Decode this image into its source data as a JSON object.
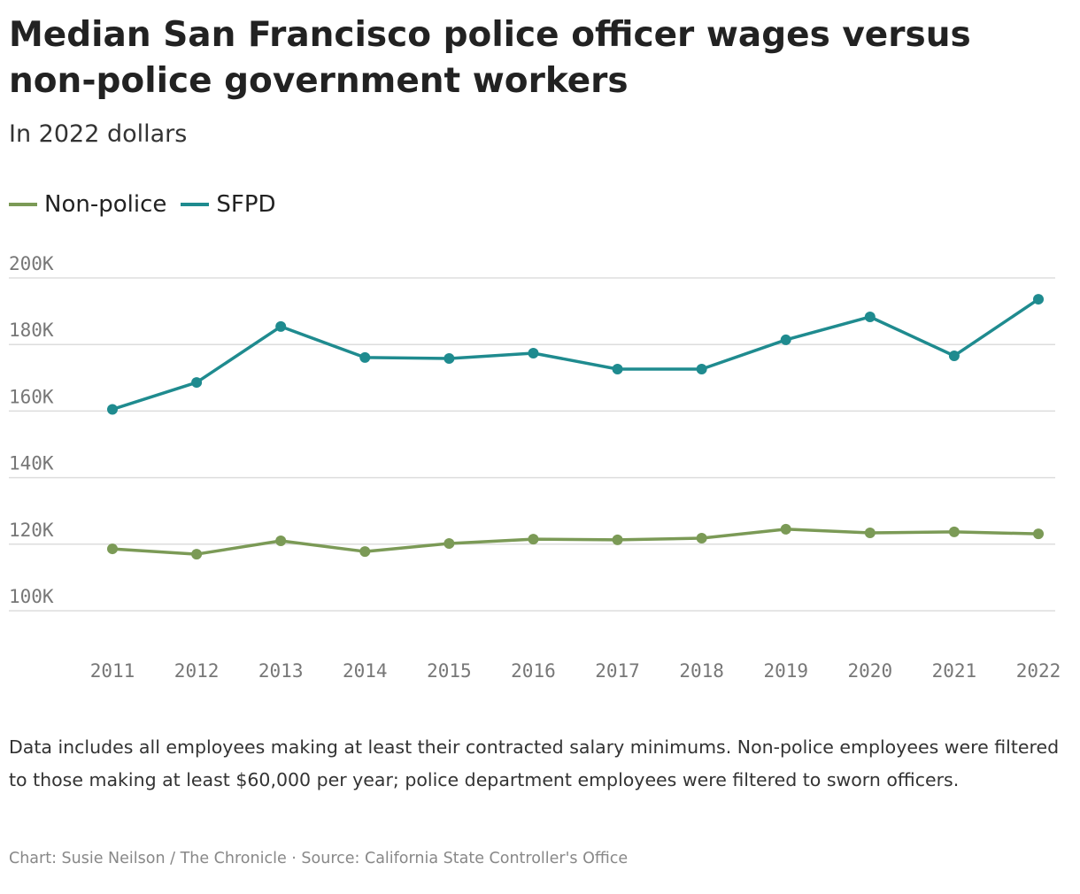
{
  "chart_data": {
    "type": "line",
    "title": "Median San Francisco police officer wages versus non-police government workers",
    "subtitle": "In 2022 dollars",
    "categories": [
      "2011",
      "2012",
      "2013",
      "2014",
      "2015",
      "2016",
      "2017",
      "2018",
      "2019",
      "2020",
      "2021",
      "2022"
    ],
    "series": [
      {
        "name": "Non-police",
        "color": "#7b9a56",
        "values": [
          118600,
          117000,
          121000,
          117800,
          120200,
          121500,
          121300,
          121800,
          124500,
          123400,
          123700,
          123100
        ]
      },
      {
        "name": "SFPD",
        "color": "#1f8b8f",
        "values": [
          160500,
          168600,
          185400,
          176100,
          175800,
          177400,
          172600,
          172600,
          181400,
          188300,
          176600,
          193600
        ]
      }
    ],
    "ylim": [
      100000,
      200000
    ],
    "yticks": [
      {
        "value": 100000,
        "label": "100K"
      },
      {
        "value": 120000,
        "label": "120K"
      },
      {
        "value": 140000,
        "label": "140K"
      },
      {
        "value": 160000,
        "label": "160K"
      },
      {
        "value": 180000,
        "label": "180K"
      },
      {
        "value": 200000,
        "label": "200K"
      }
    ],
    "grid": true,
    "legend": "top-left",
    "note": "Data includes all employees making at least their contracted salary minimums. Non-police employees were filtered to those making at least $60,000 per year; police department employees were filtered to sworn officers.",
    "credit": "Chart: Susie Neilson / The Chronicle · Source: California State Controller's Office"
  }
}
